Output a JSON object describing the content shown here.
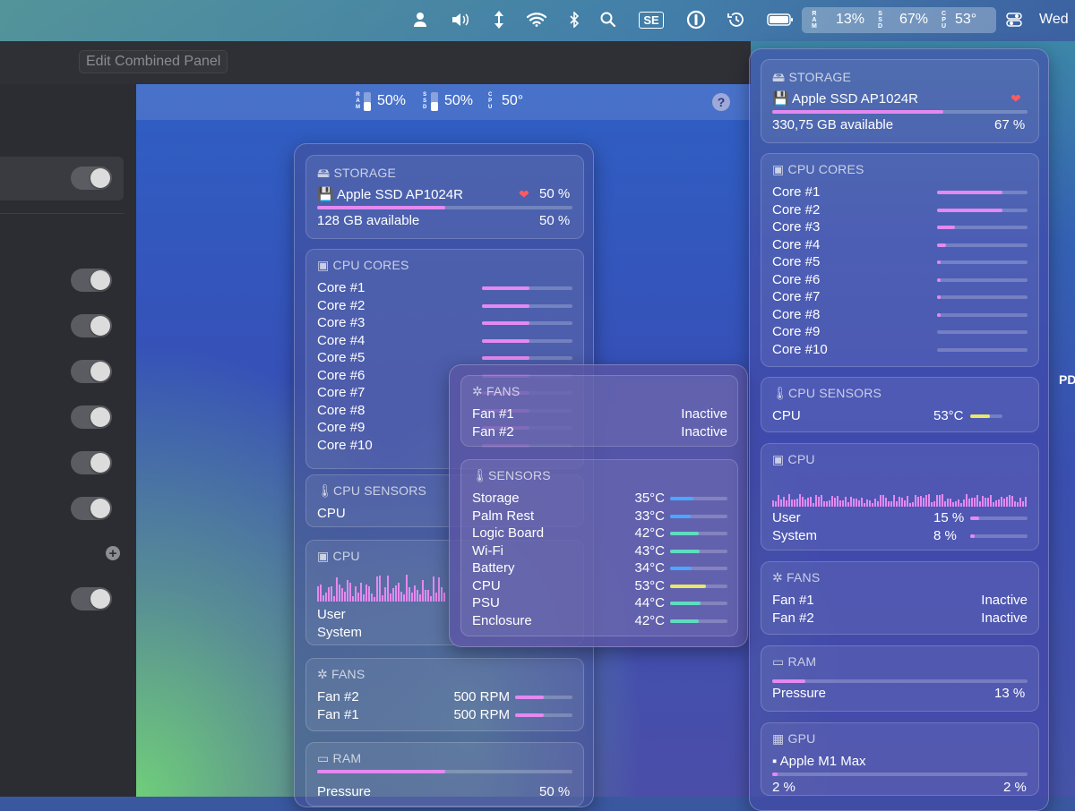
{
  "menubar": {
    "datetime": "Wed",
    "se_label": "SE",
    "stats": {
      "ram_label": "RAM",
      "ram_value": "13%",
      "ssd_label": "SSD",
      "ssd_value": "67%",
      "cpu_label": "CPU",
      "cpu_value": "53°"
    }
  },
  "app": {
    "edit_button": "Edit Combined Panel",
    "preview_stats": {
      "ram_label": "RAM",
      "ram_value": "50%",
      "ssd_label": "SSD",
      "ssd_value": "50%",
      "cpu_label": "CPU",
      "cpu_value": "50°"
    },
    "help": "?",
    "add": "+"
  },
  "preview_panel": {
    "storage": {
      "header": "STORAGE",
      "name": "Apple SSD AP1024R",
      "percent": "50 %",
      "available": "128 GB available",
      "available_pct": "50 %",
      "fill": 0.5
    },
    "cpu_cores": {
      "header": "CPU CORES",
      "cores": [
        "Core #1",
        "Core #2",
        "Core #3",
        "Core #4",
        "Core #5",
        "Core #6",
        "Core #7",
        "Core #8",
        "Core #9",
        "Core #10"
      ],
      "fills": [
        0.52,
        0.52,
        0.52,
        0.52,
        0.52,
        0.52,
        0.52,
        0.52,
        0.52,
        0.52
      ]
    },
    "cpu_sensors": {
      "header": "CPU SENSORS",
      "label": "CPU"
    },
    "cpu": {
      "header": "CPU",
      "user": "User",
      "system": "System"
    },
    "fans": {
      "header": "FANS",
      "rows": [
        {
          "name": "Fan #2",
          "value": "500 RPM",
          "fill": 0.5
        },
        {
          "name": "Fan #1",
          "value": "500 RPM",
          "fill": 0.5
        }
      ]
    },
    "ram": {
      "header": "RAM",
      "pressure": "Pressure",
      "pressure_value": "50 %",
      "fill": 0.5
    }
  },
  "popup": {
    "fans": {
      "header": "FANS",
      "rows": [
        {
          "name": "Fan #1",
          "value": "Inactive"
        },
        {
          "name": "Fan #2",
          "value": "Inactive"
        }
      ]
    },
    "sensors": {
      "header": "SENSORS",
      "rows": [
        {
          "name": "Storage",
          "value": "35°C",
          "fill": 0.4,
          "color": "#4aa8ff"
        },
        {
          "name": "Palm Rest",
          "value": "33°C",
          "fill": 0.36,
          "color": "#4aa8ff"
        },
        {
          "name": "Logic Board",
          "value": "42°C",
          "fill": 0.5,
          "color": "#5fdcc0"
        },
        {
          "name": "Wi-Fi",
          "value": "43°C",
          "fill": 0.52,
          "color": "#5fdcc0"
        },
        {
          "name": "Battery",
          "value": "34°C",
          "fill": 0.38,
          "color": "#4aa8ff"
        },
        {
          "name": "CPU",
          "value": "53°C",
          "fill": 0.62,
          "color": "#e8e86a"
        },
        {
          "name": "PSU",
          "value": "44°C",
          "fill": 0.53,
          "color": "#5fdcc0"
        },
        {
          "name": "Enclosure",
          "value": "42°C",
          "fill": 0.5,
          "color": "#5fdcc0"
        }
      ]
    }
  },
  "right_panel": {
    "storage": {
      "header": "STORAGE",
      "name": "Apple SSD AP1024R",
      "available": "330,75 GB available",
      "percent": "67 %",
      "fill": 0.67
    },
    "cpu_cores": {
      "header": "CPU CORES",
      "cores": [
        "Core #1",
        "Core #2",
        "Core #3",
        "Core #4",
        "Core #5",
        "Core #6",
        "Core #7",
        "Core #8",
        "Core #9",
        "Core #10"
      ],
      "fills": [
        0.72,
        0.72,
        0.2,
        0.1,
        0.04,
        0.04,
        0.04,
        0.04,
        0,
        0
      ]
    },
    "cpu_sensors": {
      "header": "CPU SENSORS",
      "label": "CPU",
      "value": "53°C",
      "fill": 0.62
    },
    "cpu": {
      "header": "CPU",
      "user": "User",
      "user_value": "15 %",
      "user_fill": 0.15,
      "system": "System",
      "system_value": "8 %",
      "system_fill": 0.08
    },
    "fans": {
      "header": "FANS",
      "rows": [
        {
          "name": "Fan #1",
          "value": "Inactive"
        },
        {
          "name": "Fan #2",
          "value": "Inactive"
        }
      ]
    },
    "ram": {
      "header": "RAM",
      "pressure": "Pressure",
      "pressure_value": "13 %",
      "fill": 0.13
    },
    "gpu": {
      "header": "GPU",
      "name": "Apple M1 Max",
      "left_value": "2 %",
      "right_value": "2 %",
      "fill": 0.02
    }
  },
  "edge_text": "PD",
  "colors": {
    "accent_pink": "#e489f0",
    "yellow": "#e8e86a",
    "blue": "#4aa8ff",
    "teal": "#5fdcc0"
  }
}
